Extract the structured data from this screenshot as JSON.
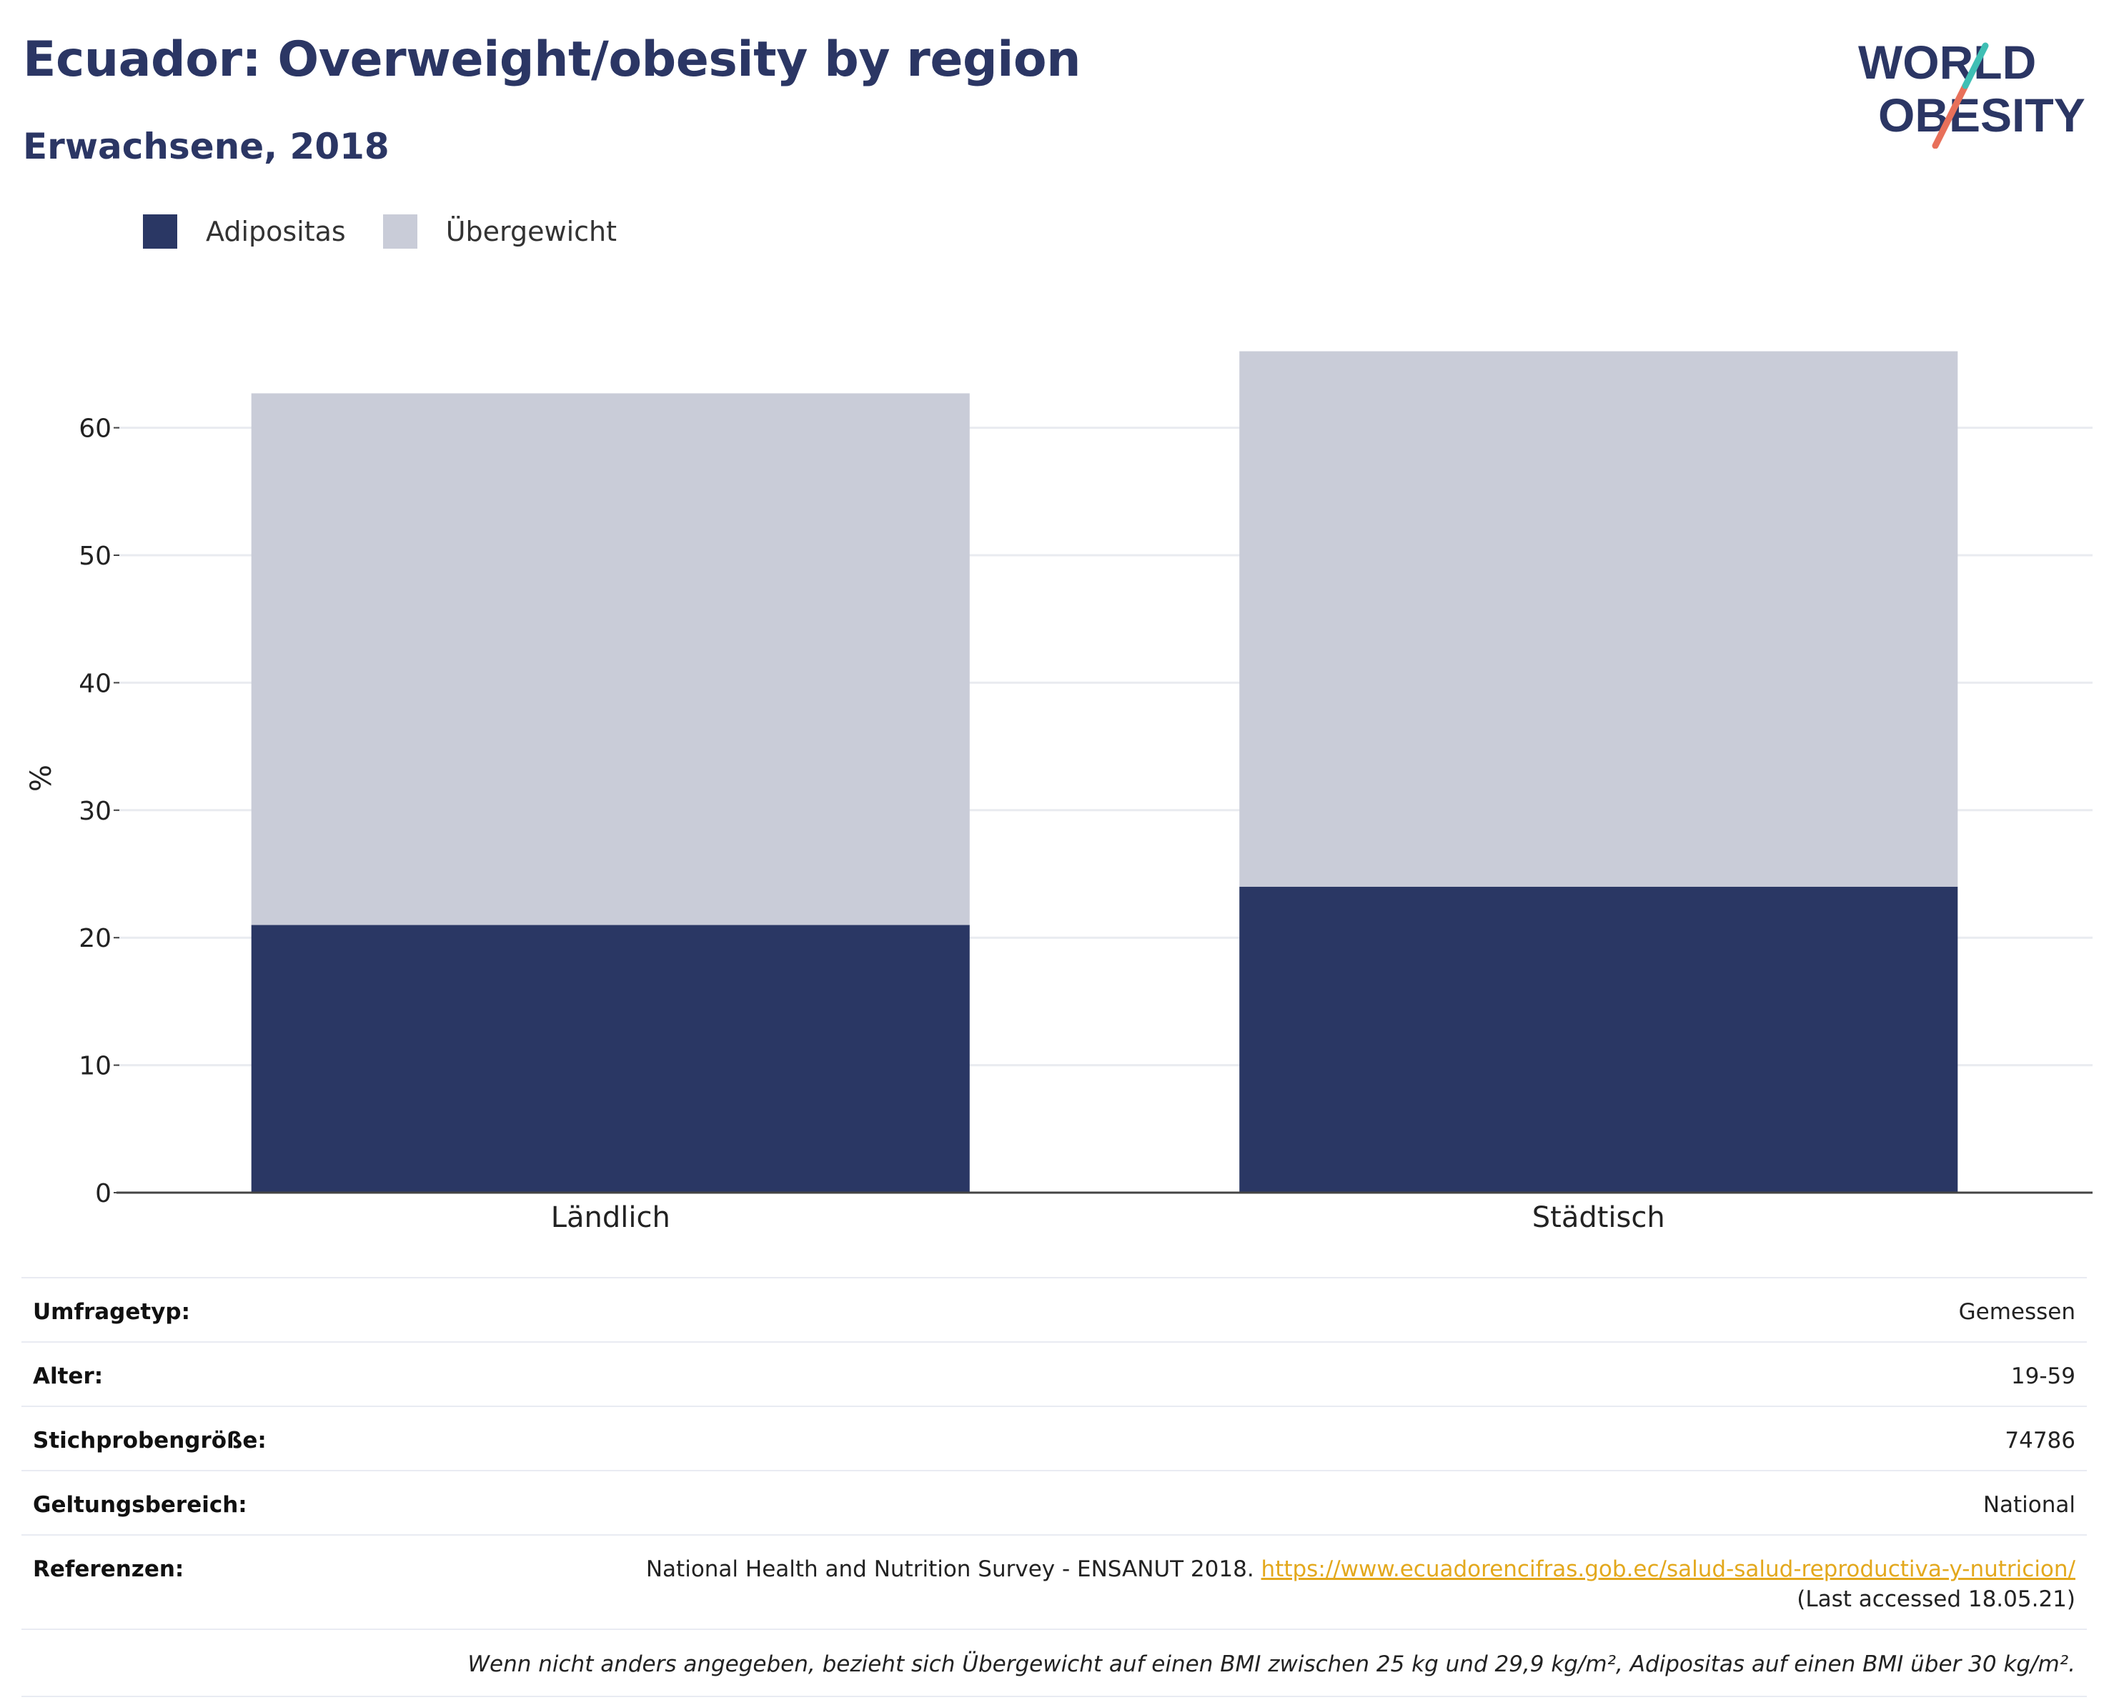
{
  "header": {
    "title": "Ecuador: Overweight/obesity by region",
    "subtitle": "Erwachsene, 2018"
  },
  "logo": {
    "line1": "WORLD",
    "line2": "OBESITY"
  },
  "colors": {
    "obesity": "#2a3764",
    "overweight": "#c9ccd8",
    "title": "#2b3664",
    "link": "#e3a81d"
  },
  "chart_data": {
    "type": "bar",
    "stacked": true,
    "categories": [
      "Ländlich",
      "Städtisch"
    ],
    "series": [
      {
        "name": "Adipositas",
        "values": [
          21.0,
          24.0
        ]
      },
      {
        "name": "Übergewicht",
        "values": [
          41.7,
          42.0
        ]
      }
    ],
    "ylabel": "%",
    "xlabel": "",
    "ylim": [
      0,
      70
    ],
    "yticks": [
      0,
      10,
      20,
      30,
      40,
      50,
      60
    ],
    "grid": true,
    "legend_position": "top-left"
  },
  "info": {
    "rows": [
      {
        "label": "Umfragetyp:",
        "value": "Gemessen"
      },
      {
        "label": "Alter:",
        "value": "19-59"
      },
      {
        "label": "Stichprobengröße:",
        "value": "74786"
      },
      {
        "label": "Geltungsbereich:",
        "value": "National"
      }
    ],
    "references": {
      "label": "Referenzen:",
      "text": "National Health and Nutrition Survey - ENSANUT 2018.",
      "url": "https://www.ecuadorencifras.gob.ec/salud-salud-reproductiva-y-nutricion/",
      "accessed": "(Last accessed 18.05.21)"
    },
    "note": "Wenn nicht anders angegeben, bezieht sich Übergewicht auf einen BMI zwischen 25 kg und 29,9 kg/m², Adipositas auf einen BMI über 30 kg/m²."
  }
}
